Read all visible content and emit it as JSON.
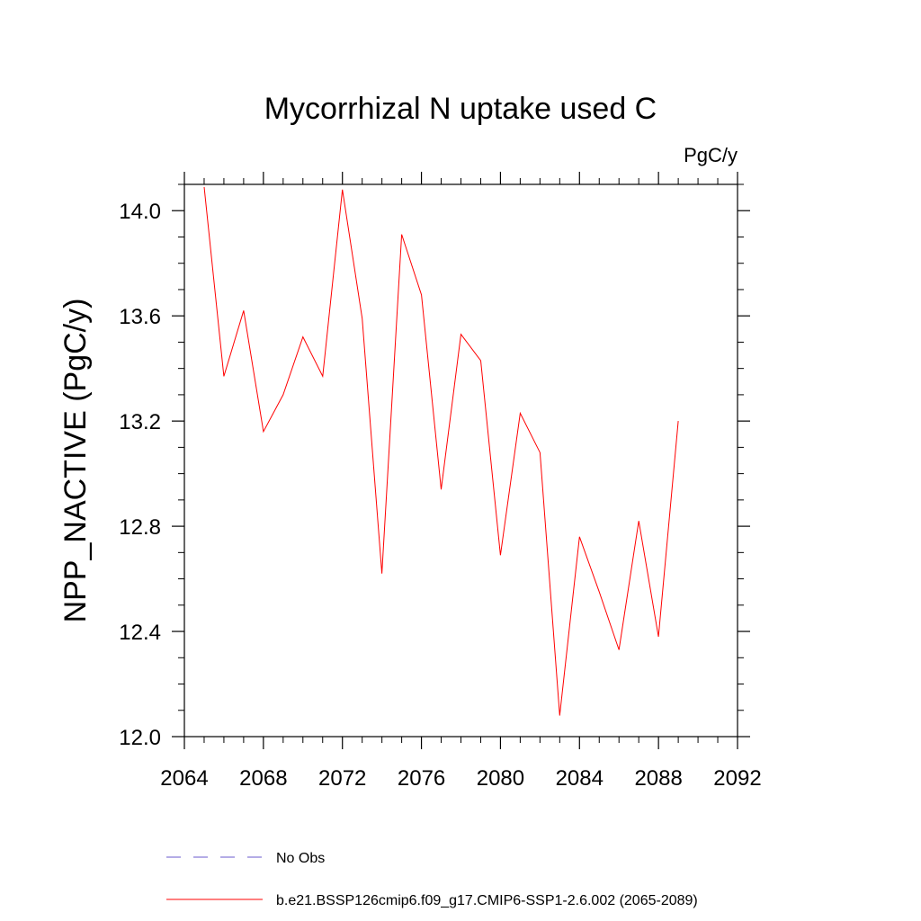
{
  "chart_data": {
    "type": "line",
    "title": "Mycorrhizal N uptake used C",
    "units": "PgC/y",
    "xlabel": "",
    "ylabel": "NPP_NACTIVE  (PgC/y)",
    "xlim": [
      2064,
      2092
    ],
    "ylim": [
      12.0,
      14.1
    ],
    "x_ticks": [
      2064,
      2068,
      2072,
      2076,
      2080,
      2084,
      2088,
      2092
    ],
    "x_tick_labels": [
      "2064",
      "2068",
      "2072",
      "2076",
      "2080",
      "2084",
      "2088",
      "2092"
    ],
    "y_ticks": [
      12.0,
      12.4,
      12.8,
      13.2,
      13.6,
      14.0
    ],
    "y_tick_labels": [
      "12.0",
      "12.4",
      "12.8",
      "13.2",
      "13.6",
      "14.0"
    ],
    "series": [
      {
        "name": "b.e21.BSSP126cmip6.f09_g17.CMIP6-SSP1-2.6.002 (2065-2089)",
        "color": "#ff0000",
        "x": [
          2065,
          2066,
          2067,
          2068,
          2069,
          2070,
          2071,
          2072,
          2073,
          2074,
          2075,
          2076,
          2077,
          2078,
          2079,
          2080,
          2081,
          2082,
          2083,
          2084,
          2085,
          2086,
          2087,
          2088,
          2089
        ],
        "values": [
          14.09,
          13.37,
          13.62,
          13.16,
          13.3,
          13.52,
          13.37,
          14.08,
          13.59,
          12.62,
          13.91,
          13.68,
          12.94,
          13.53,
          13.43,
          12.69,
          13.23,
          13.08,
          12.08,
          12.76,
          12.55,
          12.33,
          12.82,
          12.38,
          13.2
        ]
      }
    ],
    "legend": [
      {
        "label": "No Obs",
        "color": "#6a5acd",
        "style": "dashed"
      },
      {
        "label": "b.e21.BSSP126cmip6.f09_g17.CMIP6-SSP1-2.6.002 (2065-2089)",
        "color": "#ff0000",
        "style": "solid"
      }
    ],
    "legend_position": "bottom"
  }
}
